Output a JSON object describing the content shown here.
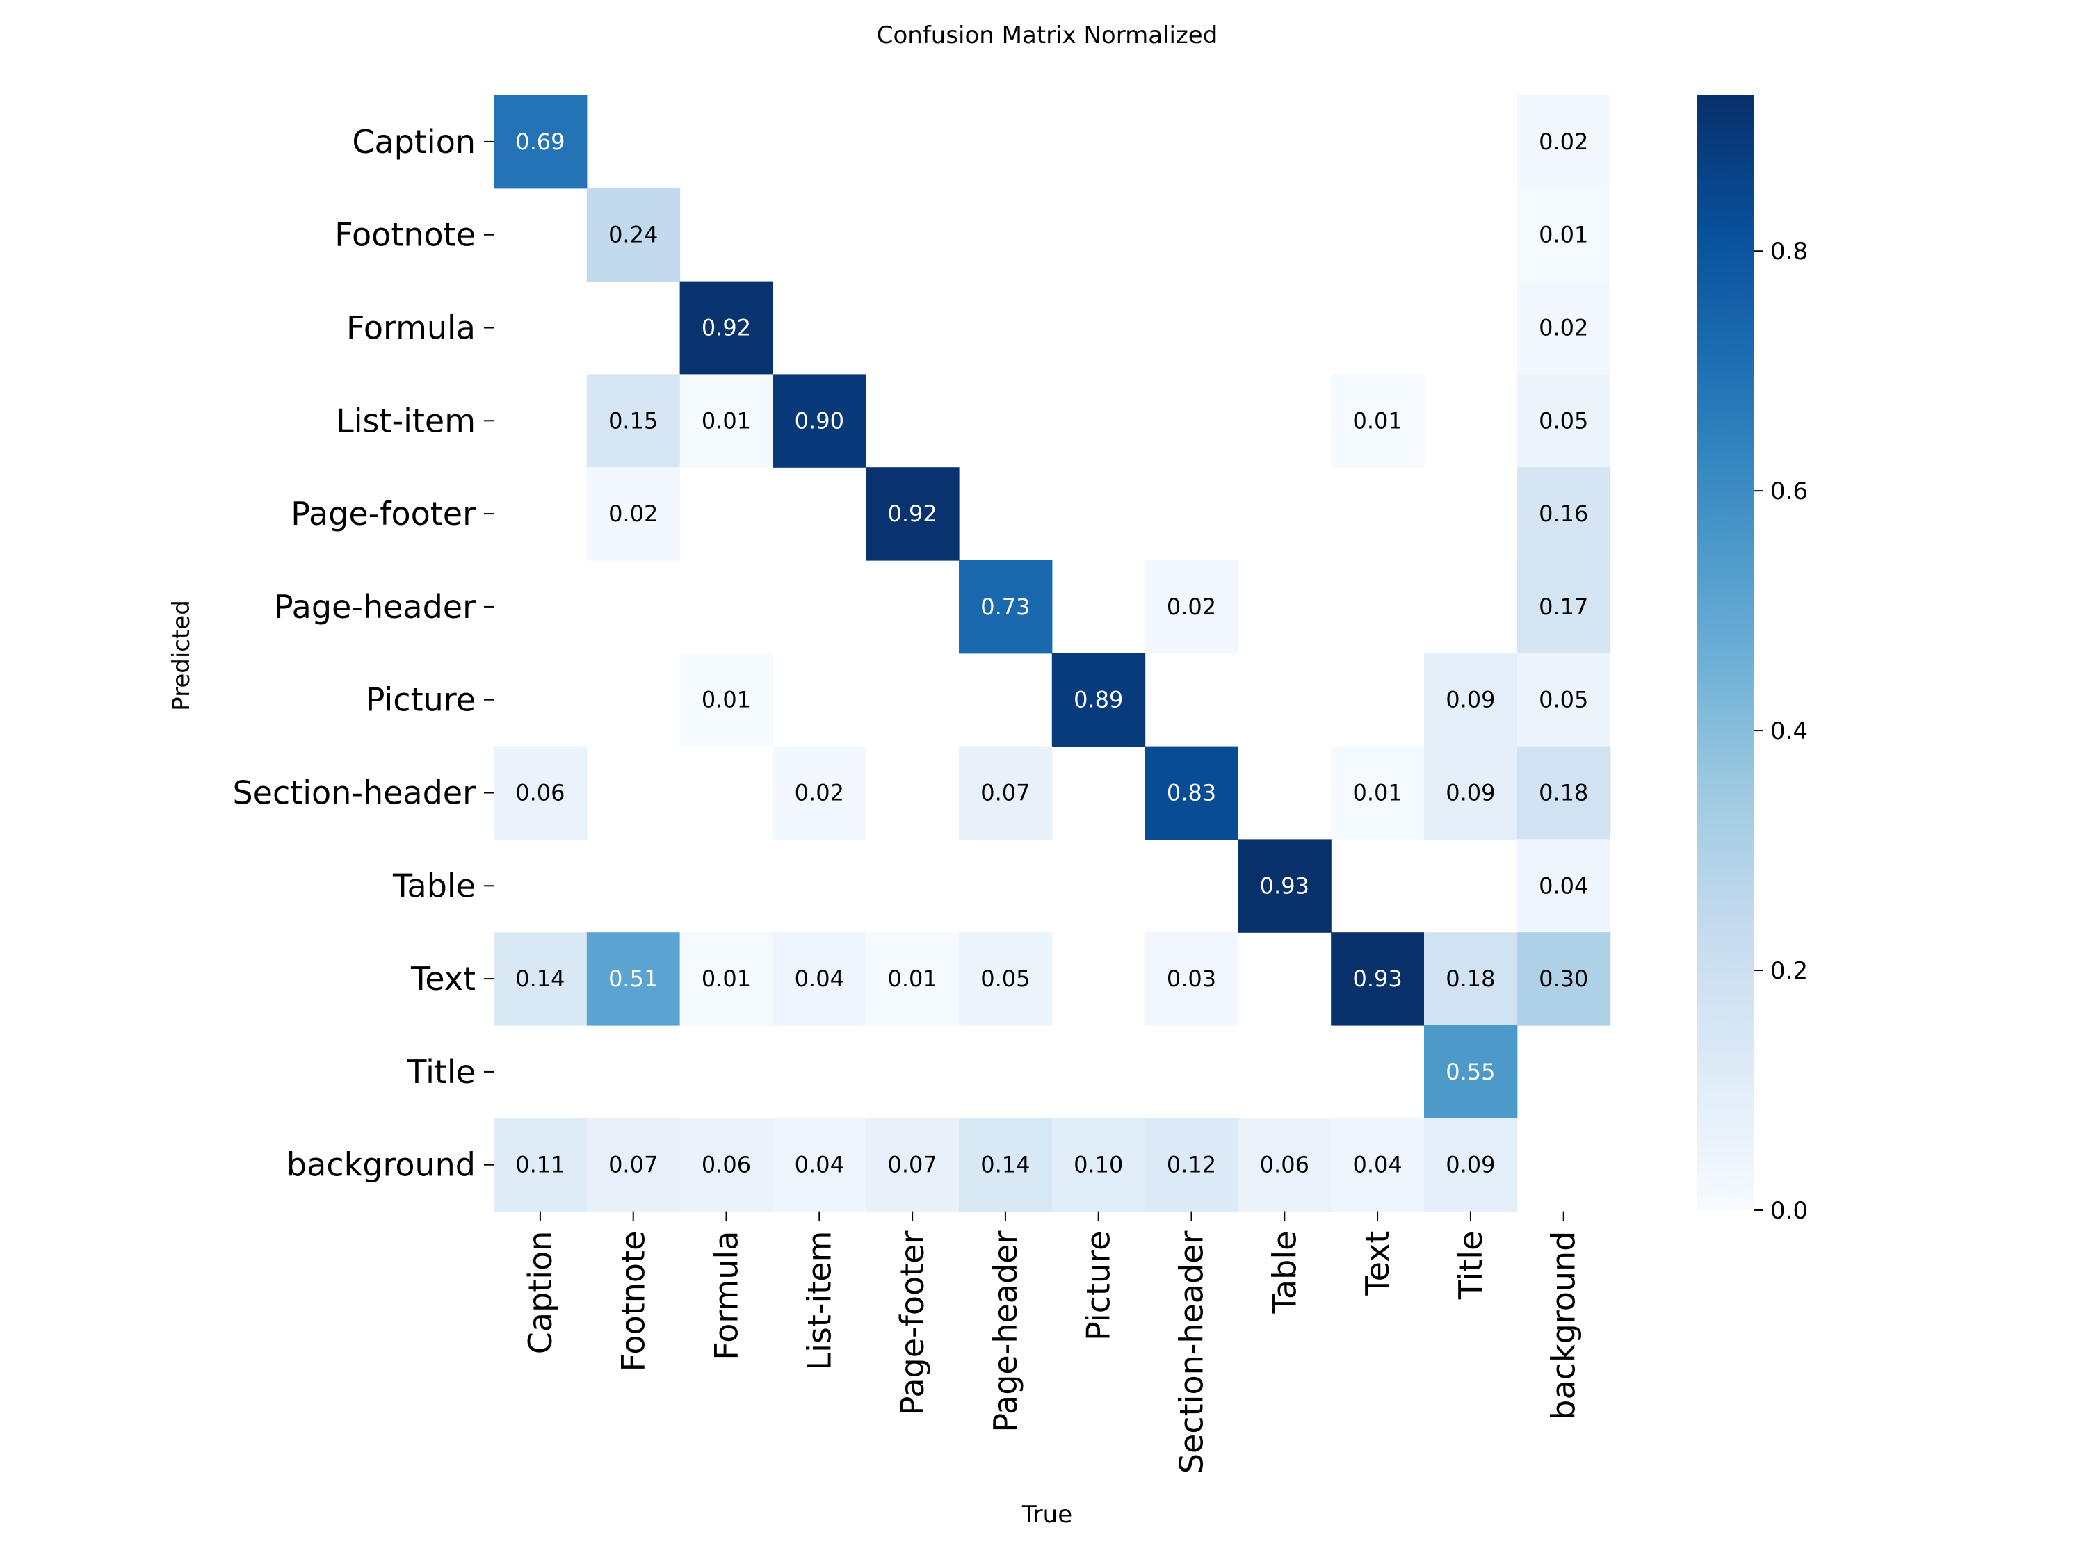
{
  "chart_data": {
    "type": "heatmap",
    "title": "Confusion Matrix Normalized",
    "xlabel": "True",
    "ylabel": "Predicted",
    "x_categories": [
      "Caption",
      "Footnote",
      "Formula",
      "List-item",
      "Page-footer",
      "Page-header",
      "Picture",
      "Section-header",
      "Table",
      "Text",
      "Title",
      "background"
    ],
    "y_categories": [
      "Caption",
      "Footnote",
      "Formula",
      "List-item",
      "Page-footer",
      "Page-header",
      "Picture",
      "Section-header",
      "Table",
      "Text",
      "Title",
      "background"
    ],
    "values": [
      [
        0.69,
        null,
        null,
        null,
        null,
        null,
        null,
        null,
        null,
        null,
        null,
        0.02
      ],
      [
        null,
        0.24,
        null,
        null,
        null,
        null,
        null,
        null,
        null,
        null,
        null,
        0.01
      ],
      [
        null,
        null,
        0.92,
        null,
        null,
        null,
        null,
        null,
        null,
        null,
        null,
        0.02
      ],
      [
        null,
        0.15,
        0.01,
        0.9,
        null,
        null,
        null,
        null,
        null,
        0.01,
        null,
        0.05
      ],
      [
        null,
        0.02,
        null,
        null,
        0.92,
        null,
        null,
        null,
        null,
        null,
        null,
        0.16
      ],
      [
        null,
        null,
        null,
        null,
        null,
        0.73,
        null,
        0.02,
        null,
        null,
        null,
        0.17
      ],
      [
        null,
        null,
        0.01,
        null,
        null,
        null,
        0.89,
        null,
        null,
        null,
        0.09,
        0.05
      ],
      [
        0.06,
        null,
        null,
        0.02,
        null,
        0.07,
        null,
        0.83,
        null,
        0.01,
        0.09,
        0.18
      ],
      [
        null,
        null,
        null,
        null,
        null,
        null,
        null,
        null,
        0.93,
        null,
        null,
        0.04
      ],
      [
        0.14,
        0.51,
        0.01,
        0.04,
        0.01,
        0.05,
        null,
        0.03,
        null,
        0.93,
        0.18,
        0.3
      ],
      [
        null,
        null,
        null,
        null,
        null,
        null,
        null,
        null,
        null,
        null,
        0.55,
        null
      ],
      [
        0.11,
        0.07,
        0.06,
        0.04,
        0.07,
        0.14,
        0.1,
        0.12,
        0.06,
        0.04,
        0.09,
        null
      ]
    ],
    "colorbar": {
      "colormap": "Blues",
      "vmin": 0.0,
      "vmax": 0.93,
      "ticks": [
        0.0,
        0.2,
        0.4,
        0.6,
        0.8
      ],
      "tick_labels": [
        "0.0",
        "0.2",
        "0.4",
        "0.6",
        "0.8"
      ]
    },
    "grid": false
  }
}
